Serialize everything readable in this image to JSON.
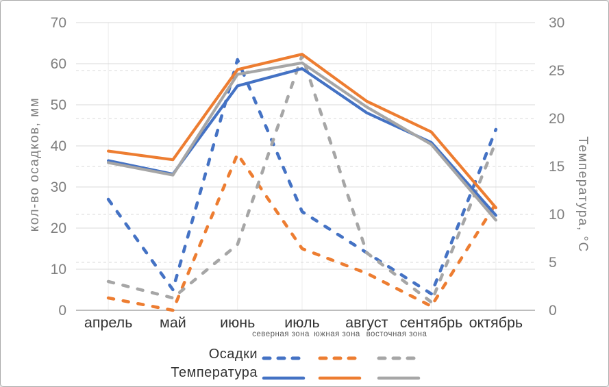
{
  "chart_data": {
    "type": "line",
    "title": "",
    "categories": [
      "апрель",
      "май",
      "июнь",
      "июль",
      "август",
      "сентябрь",
      "октябрь"
    ],
    "left_axis": {
      "title": "кол-во осадков, мм",
      "min": 0,
      "max": 70,
      "step": 10,
      "ticks": [
        0,
        10,
        20,
        30,
        40,
        50,
        60,
        70
      ],
      "grid_style": "solid"
    },
    "right_axis": {
      "title": "Температура, °C",
      "min": 0,
      "max": 30,
      "step": 5,
      "ticks": [
        0,
        5,
        10,
        15,
        20,
        25,
        30
      ],
      "grid_style": "dashed"
    },
    "legend": {
      "position": "bottom",
      "row_labels": [
        "Осадки",
        "Температура"
      ],
      "column_labels": [
        "северная зона",
        "южная зона",
        "восточная зона"
      ]
    },
    "series": [
      {
        "name": "Осадки — северная зона",
        "group": "Осадки",
        "zone": "северная зона",
        "axis": "left",
        "style": "dashed",
        "color": "#4472C4",
        "values": [
          27,
          5,
          61,
          24,
          14,
          4,
          44
        ]
      },
      {
        "name": "Осадки — южная зона",
        "group": "Осадки",
        "zone": "южная зона",
        "axis": "left",
        "style": "dashed",
        "color": "#ED7D31",
        "values": [
          3,
          0,
          38,
          15,
          9,
          1,
          26
        ]
      },
      {
        "name": "Осадки — восточная зона",
        "group": "Осадки",
        "zone": "восточная зона",
        "axis": "left",
        "style": "dashed",
        "color": "#A6A6A6",
        "values": [
          7,
          3,
          16,
          62,
          14,
          2,
          41
        ]
      },
      {
        "name": "Температура — северная зона",
        "group": "Температура",
        "zone": "северная зона",
        "axis": "right",
        "style": "solid",
        "color": "#4472C4",
        "values": [
          15.6,
          14.2,
          23.4,
          25.2,
          20.6,
          17.5,
          9.9
        ]
      },
      {
        "name": "Температура — южная зона",
        "group": "Температура",
        "zone": "южная зона",
        "axis": "right",
        "style": "solid",
        "color": "#ED7D31",
        "values": [
          16.6,
          15.7,
          25.1,
          26.7,
          21.8,
          18.6,
          10.7
        ]
      },
      {
        "name": "Температура — восточная зона",
        "group": "Температура",
        "zone": "восточная зона",
        "axis": "right",
        "style": "solid",
        "color": "#A6A6A6",
        "values": [
          15.4,
          14.1,
          24.6,
          25.8,
          21.2,
          17.3,
          9.4
        ]
      }
    ],
    "style": {
      "grid_color": "#d9d9d9",
      "vertical_grid_color": "#ededed",
      "axis_line_color": "#bdbdbd",
      "tick_label_color": "#7f7f7f",
      "category_label_color": "#333333"
    }
  }
}
